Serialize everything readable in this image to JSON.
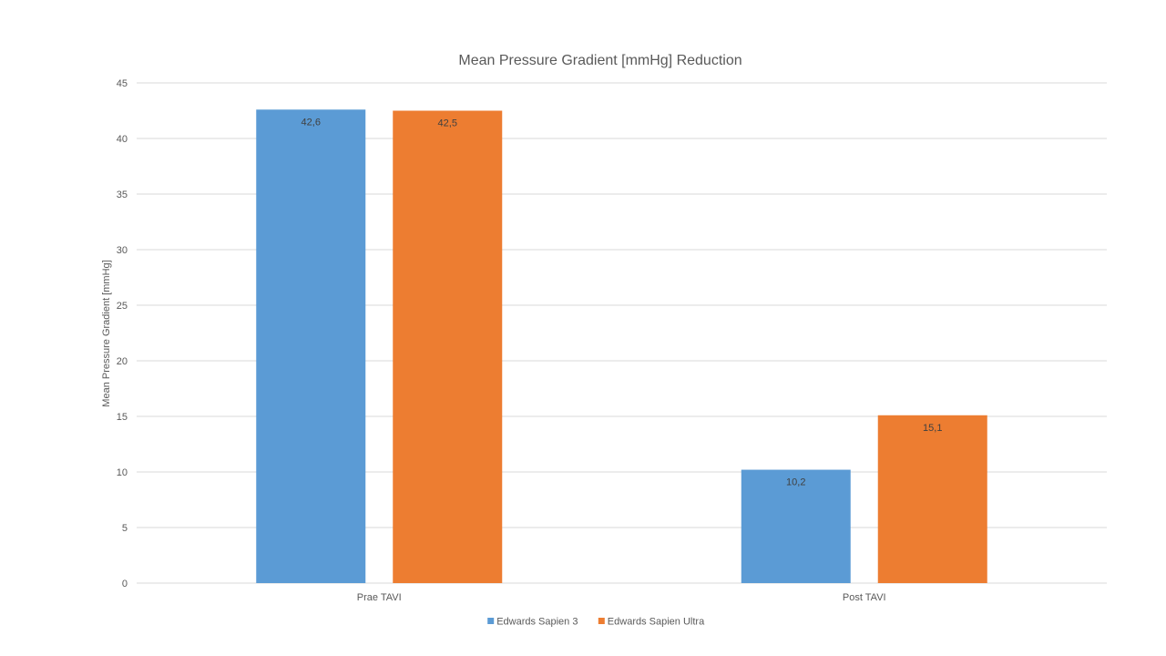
{
  "chart_data": {
    "type": "bar",
    "title": "Mean Pressure Gradient [mmHg] Reduction",
    "xlabel": "",
    "ylabel": "Mean Pressure Gradient [mmHg]",
    "categories": [
      "Prae TAVI",
      "Post TAVI"
    ],
    "series": [
      {
        "name": "Edwards Sapien 3",
        "values": [
          42.6,
          10.2
        ],
        "labels": [
          "42,6",
          "10,2"
        ],
        "color": "#5B9BD5"
      },
      {
        "name": "Edwards Sapien Ultra",
        "values": [
          42.5,
          15.1
        ],
        "labels": [
          "42,5",
          "15,1"
        ],
        "color": "#ED7D31"
      }
    ],
    "ylim": [
      0,
      45
    ],
    "yticks": [
      0,
      5,
      10,
      15,
      20,
      25,
      30,
      35,
      40,
      45
    ],
    "grid": true,
    "legend": "bottom-center"
  }
}
